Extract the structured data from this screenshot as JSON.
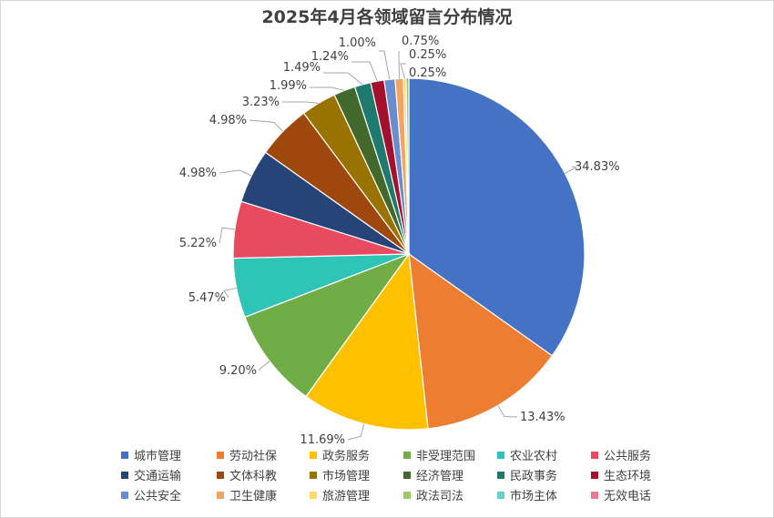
{
  "chart_data": {
    "type": "pie",
    "title": "2025年4月各领域留言分布情况",
    "categories": [
      "城市管理",
      "劳动社保",
      "政务服务",
      "非受理范围",
      "农业农村",
      "公共服务",
      "交通运输",
      "文体科教",
      "市场管理",
      "经济管理",
      "民政事务",
      "生态环境",
      "公共安全",
      "卫生健康",
      "旅游管理",
      "政法司法",
      "市场主体",
      "无效电话"
    ],
    "values": [
      34.83,
      13.43,
      11.69,
      9.2,
      5.47,
      5.22,
      4.98,
      4.98,
      3.23,
      1.99,
      1.49,
      1.24,
      1.0,
      0.75,
      0.25,
      0.25,
      0.0,
      0.0
    ],
    "data_labels": [
      "34.83%",
      "13.43%",
      "11.69%",
      "9.20%",
      "5.47%",
      "5.22%",
      "4.98%",
      "4.98%",
      "3.23%",
      "1.99%",
      "1.49%",
      "1.24%",
      "1.00%",
      "0.75%",
      "0.25%",
      "0.25%",
      "",
      ""
    ],
    "colors": [
      "#4472c4",
      "#ed7d31",
      "#ffc000",
      "#70ad47",
      "#2ec4b6",
      "#e84a5f",
      "#264478",
      "#9e480e",
      "#997300",
      "#43682b",
      "#1f7a6e",
      "#a5102e",
      "#698ed0",
      "#f4a460",
      "#ffd966",
      "#9bc86a",
      "#5fd3c9",
      "#f07a8c"
    ],
    "legend_position": "bottom",
    "units": "%"
  }
}
